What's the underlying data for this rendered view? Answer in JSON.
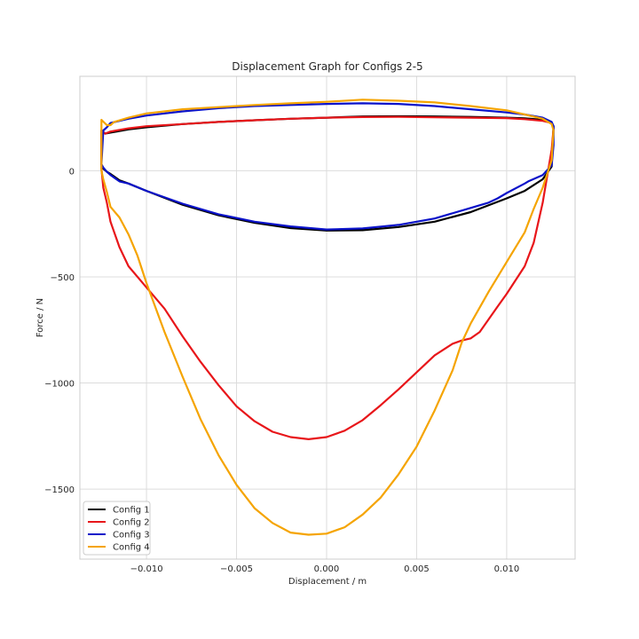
{
  "chart_data": {
    "type": "line",
    "title": "Displacement Graph for Configs 2-5",
    "xlabel": "Displacement / m",
    "ylabel": "Force / N",
    "xlim": [
      -0.0137,
      0.0138
    ],
    "ylim": [
      -1830,
      445
    ],
    "xticks": [
      -0.01,
      -0.005,
      0.0,
      0.005,
      0.01
    ],
    "xtick_labels": [
      "−0.010",
      "−0.005",
      "0.000",
      "0.005",
      "0.010"
    ],
    "yticks": [
      0,
      -500,
      -1000,
      -1500
    ],
    "ytick_labels": [
      "0",
      "−500",
      "−1000",
      "−1500"
    ],
    "grid": true,
    "legend_position": "bottom-left",
    "series": [
      {
        "name": "Config 1",
        "color": "#000000",
        "x": [
          -0.0125,
          -0.0124,
          -0.0122,
          -0.012,
          -0.0115,
          -0.011,
          -0.01,
          -0.008,
          -0.006,
          -0.004,
          -0.002,
          0.0,
          0.002,
          0.004,
          0.006,
          0.008,
          0.01,
          0.011,
          0.012,
          0.0125,
          0.01255,
          0.0126,
          0.0125,
          0.012,
          0.011,
          0.01,
          0.008,
          0.006,
          0.004,
          0.002,
          0.0,
          -0.002,
          -0.004,
          -0.006,
          -0.008,
          -0.01,
          -0.011,
          -0.012,
          -0.0123,
          -0.0125,
          -0.0125
        ],
        "y": [
          30,
          10,
          -5,
          -15,
          -45,
          -60,
          -95,
          -160,
          -210,
          -245,
          -270,
          -282,
          -280,
          -265,
          -240,
          -195,
          -130,
          -95,
          -40,
          20,
          120,
          210,
          225,
          240,
          247,
          250,
          254,
          256,
          257,
          256,
          250,
          245,
          238,
          230,
          220,
          205,
          195,
          180,
          175,
          190,
          30
        ]
      },
      {
        "name": "Config 2",
        "color": "#e8161a",
        "x": [
          -0.0125,
          -0.0124,
          -0.0122,
          -0.012,
          -0.0115,
          -0.011,
          -0.01,
          -0.009,
          -0.008,
          -0.007,
          -0.006,
          -0.005,
          -0.004,
          -0.003,
          -0.002,
          -0.001,
          0.0,
          0.001,
          0.002,
          0.003,
          0.004,
          0.005,
          0.006,
          0.007,
          0.0075,
          0.008,
          0.0085,
          0.009,
          0.0095,
          0.01,
          0.011,
          0.0115,
          0.012,
          0.0125,
          0.0126,
          0.0125,
          0.012,
          0.011,
          0.01,
          0.008,
          0.006,
          0.004,
          0.002,
          0.0,
          -0.002,
          -0.004,
          -0.006,
          -0.008,
          -0.01,
          -0.011,
          -0.012,
          -0.0123,
          -0.0125,
          -0.0125
        ],
        "y": [
          10,
          -80,
          -150,
          -240,
          -360,
          -450,
          -550,
          -650,
          -780,
          -900,
          -1010,
          -1110,
          -1180,
          -1230,
          -1255,
          -1265,
          -1255,
          -1225,
          -1175,
          -1105,
          -1030,
          -950,
          -870,
          -815,
          -800,
          -790,
          -760,
          -700,
          -640,
          -580,
          -450,
          -340,
          -150,
          100,
          200,
          225,
          235,
          243,
          248,
          250,
          252,
          254,
          253,
          250,
          245,
          238,
          230,
          220,
          210,
          200,
          185,
          175,
          190,
          10
        ]
      },
      {
        "name": "Config 3",
        "color": "#0a12c9",
        "x": [
          -0.0125,
          -0.0124,
          -0.0122,
          -0.012,
          -0.0115,
          -0.011,
          -0.01,
          -0.008,
          -0.006,
          -0.004,
          -0.002,
          0.0,
          0.002,
          0.004,
          0.006,
          0.008,
          0.009,
          0.0095,
          0.01,
          0.011,
          0.0112,
          0.012,
          0.0125,
          0.0126,
          0.0126,
          0.0125,
          0.012,
          0.011,
          0.01,
          0.008,
          0.006,
          0.004,
          0.002,
          0.0,
          -0.002,
          -0.004,
          -0.006,
          -0.008,
          -0.01,
          -0.011,
          -0.012,
          -0.0122,
          -0.0124,
          -0.0125
        ],
        "y": [
          30,
          15,
          -5,
          -20,
          -50,
          -60,
          -95,
          -155,
          -205,
          -240,
          -262,
          -277,
          -272,
          -255,
          -225,
          -175,
          -150,
          -130,
          -105,
          -60,
          -50,
          -20,
          25,
          120,
          210,
          230,
          250,
          265,
          275,
          290,
          305,
          315,
          318,
          315,
          310,
          305,
          295,
          280,
          260,
          245,
          225,
          205,
          190,
          30
        ]
      },
      {
        "name": "Config 4",
        "color": "#f5a400",
        "x": [
          -0.0125,
          -0.0124,
          -0.0122,
          -0.012,
          -0.0115,
          -0.011,
          -0.0105,
          -0.01,
          -0.009,
          -0.008,
          -0.007,
          -0.006,
          -0.005,
          -0.004,
          -0.003,
          -0.002,
          -0.001,
          0.0,
          0.001,
          0.002,
          0.003,
          0.004,
          0.005,
          0.006,
          0.007,
          0.0075,
          0.008,
          0.009,
          0.01,
          0.011,
          0.0115,
          0.012,
          0.0125,
          0.0126,
          0.0125,
          0.012,
          0.011,
          0.01,
          0.008,
          0.006,
          0.004,
          0.002,
          0.0,
          -0.002,
          -0.004,
          -0.006,
          -0.008,
          -0.01,
          -0.011,
          -0.0118,
          -0.012,
          -0.0122,
          -0.0125,
          -0.0125
        ],
        "y": [
          0,
          -40,
          -100,
          -170,
          -220,
          -300,
          -400,
          -530,
          -760,
          -970,
          -1170,
          -1340,
          -1480,
          -1590,
          -1660,
          -1705,
          -1715,
          -1710,
          -1680,
          -1620,
          -1540,
          -1430,
          -1300,
          -1130,
          -940,
          -810,
          -720,
          -570,
          -430,
          -290,
          -180,
          -80,
          50,
          190,
          220,
          245,
          265,
          285,
          305,
          322,
          330,
          335,
          325,
          318,
          310,
          300,
          290,
          270,
          250,
          230,
          215,
          215,
          240,
          0
        ]
      }
    ]
  }
}
